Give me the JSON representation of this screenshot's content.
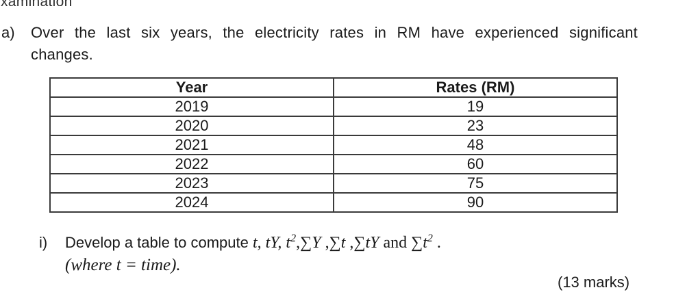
{
  "page": {
    "header_fragment": "xamination",
    "marks_label": "(13 marks)"
  },
  "question_a": {
    "label": "a)",
    "text": "Over the last six years, the electricity rates in RM have experienced significant changes."
  },
  "table": {
    "columns": [
      "Year",
      "Rates (RM)"
    ],
    "rows": [
      [
        "2019",
        "19"
      ],
      [
        "2020",
        "23"
      ],
      [
        "2021",
        "48"
      ],
      [
        "2022",
        "60"
      ],
      [
        "2023",
        "75"
      ],
      [
        "2024",
        "90"
      ]
    ]
  },
  "subquestion_i": {
    "label": "i)",
    "segments": [
      "Develop a table to compute ",
      "t, tY, t",
      "2",
      ",∑",
      "Y",
      " ,∑",
      "t",
      " ,∑",
      "tY",
      " and ∑",
      "t",
      "2",
      " ."
    ],
    "where_note": "(where t = time)."
  }
}
